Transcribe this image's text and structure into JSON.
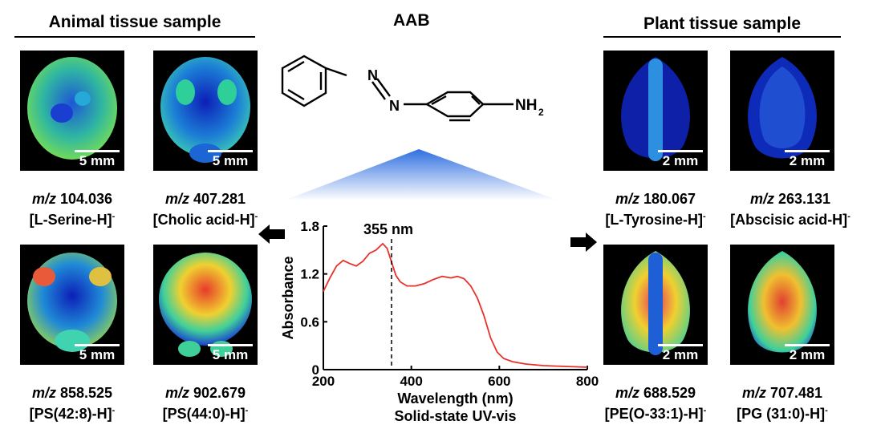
{
  "animal": {
    "title": "Animal tissue sample",
    "tiles": [
      {
        "mz_prefix": "m/z",
        "mz": "104.036",
        "ion": "[L-Serine-H]",
        "charge": "-",
        "scale": "5 mm"
      },
      {
        "mz_prefix": "m/z",
        "mz": "407.281",
        "ion": "[Cholic acid-H]",
        "charge": "-",
        "scale": "5 mm"
      },
      {
        "mz_prefix": "m/z",
        "mz": "858.525",
        "ion": "[PS(42:8)-H]",
        "charge": "-",
        "scale": "5 mm"
      },
      {
        "mz_prefix": "m/z",
        "mz": "902.679",
        "ion": "[PS(44:0)-H]",
        "charge": "-",
        "scale": "5 mm"
      }
    ]
  },
  "plant": {
    "title": "Plant tissue sample",
    "tiles": [
      {
        "mz_prefix": "m/z",
        "mz": "180.067",
        "ion": "[L-Tyrosine-H]",
        "charge": "-",
        "scale": "2 mm"
      },
      {
        "mz_prefix": "m/z",
        "mz": "263.131",
        "ion": "[Abscisic acid-H]",
        "charge": "-",
        "scale": "2 mm"
      },
      {
        "mz_prefix": "m/z",
        "mz": "688.529",
        "ion": "[PE(O-33:1)-H]",
        "charge": "-",
        "scale": "2 mm"
      },
      {
        "mz_prefix": "m/z",
        "mz": "707.481",
        "ion": "[PG (31:0)-H]",
        "charge": "-",
        "scale": "2 mm"
      }
    ]
  },
  "molecule": {
    "name": "AAB",
    "atom_n1": "N",
    "atom_n2": "N",
    "group": "NH",
    "group_sub": "2"
  },
  "chart_data": {
    "type": "line",
    "xlabel": "Wavelength (nm)",
    "subtitle": "Solid-state UV-vis",
    "ylabel": "Absorbance",
    "xlim": [
      200,
      800
    ],
    "ylim": [
      0,
      1.8
    ],
    "xticks": [
      "200",
      "400",
      "600",
      "800"
    ],
    "yticks": [
      "0",
      "0.6",
      "1.2",
      "1.8"
    ],
    "annotation": {
      "x": 355,
      "label": "355 nm"
    },
    "series": [
      {
        "color": "#e8312a",
        "x": [
          200,
          215,
          230,
          245,
          260,
          275,
          290,
          305,
          320,
          335,
          345,
          355,
          365,
          375,
          390,
          410,
          430,
          450,
          470,
          490,
          505,
          520,
          535,
          550,
          565,
          580,
          595,
          610,
          630,
          660,
          700,
          750,
          800
        ],
        "y": [
          0.98,
          1.15,
          1.3,
          1.37,
          1.33,
          1.3,
          1.36,
          1.46,
          1.5,
          1.58,
          1.52,
          1.35,
          1.18,
          1.1,
          1.05,
          1.05,
          1.08,
          1.13,
          1.17,
          1.15,
          1.17,
          1.14,
          1.05,
          0.9,
          0.68,
          0.4,
          0.22,
          0.14,
          0.1,
          0.07,
          0.05,
          0.04,
          0.03
        ]
      }
    ]
  },
  "colors": {
    "curve": "#e8312a",
    "cone_top": "#2f6fe0",
    "cone_bottom": "#ffffff"
  }
}
